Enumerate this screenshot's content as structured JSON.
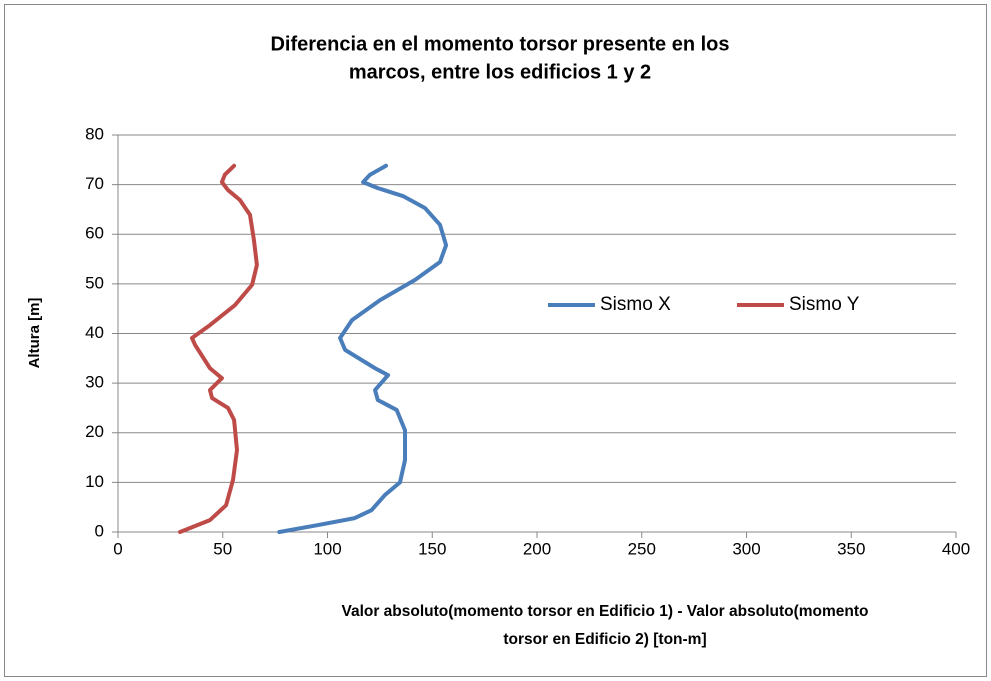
{
  "chart_data": {
    "type": "line",
    "title": [
      "Diferencia en el momento torsor presente en los",
      "marcos, entre los edificios 1 y 2"
    ],
    "x_label": [
      "Valor absoluto(momento torsor en Edificio 1) - Valor absoluto(momento",
      "torsor en Edificio 2) [ton-m]"
    ],
    "y_label": "Altura [m]",
    "xlim": [
      0,
      400
    ],
    "xticks": [
      0,
      50,
      100,
      150,
      200,
      250,
      300,
      350,
      400
    ],
    "ylim": [
      0,
      80
    ],
    "yticks": [
      0,
      10,
      20,
      30,
      40,
      50,
      60,
      70,
      80
    ],
    "grid": true,
    "legend": "right",
    "series": [
      {
        "name": "Sismo X",
        "color": "#4a7ebb",
        "x": [
          77,
          95.5,
          113,
          121,
          127.5,
          134.6,
          137,
          137,
          133,
          124,
          122.7,
          128.9,
          122.7,
          108.4,
          106,
          111.7,
          125,
          141.8,
          153.7,
          156.6,
          153.7,
          146.5,
          136,
          124,
          117,
          120.3,
          127.9
        ],
        "y": [
          0,
          1.4,
          2.8,
          4.4,
          7.5,
          10,
          14.5,
          20.5,
          24.6,
          26.6,
          28.6,
          31.6,
          33,
          36.7,
          39.1,
          42.7,
          46.7,
          50.8,
          54.4,
          57.8,
          61.9,
          65.3,
          67.7,
          69.3,
          70.5,
          72,
          73.8
        ]
      },
      {
        "name": "Sismo Y",
        "color": "#be4b48",
        "x": [
          29.6,
          43.9,
          51.6,
          54.9,
          56.8,
          55.4,
          52.5,
          44.9,
          43.9,
          49.6,
          43.9,
          36.8,
          35.3,
          43.9,
          55.8,
          64,
          66.3,
          64.9,
          63,
          58.2,
          52.5,
          49.6,
          51,
          55.4
        ],
        "y": [
          0,
          2.4,
          5.4,
          10.5,
          16.5,
          22.6,
          25,
          27,
          28.6,
          31,
          33,
          37.7,
          39.1,
          41.7,
          45.7,
          49.8,
          53.8,
          58.8,
          63.9,
          66.9,
          68.9,
          70.5,
          72,
          73.8
        ]
      }
    ]
  }
}
